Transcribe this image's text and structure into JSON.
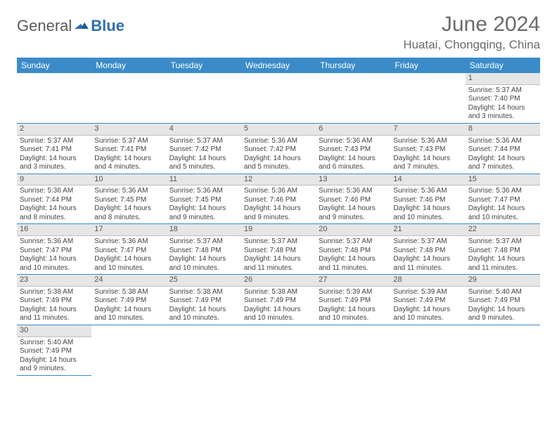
{
  "logo": {
    "text1": "General",
    "text2": "Blue"
  },
  "title": "June 2024",
  "location": "Huatai, Chongqing, China",
  "colors": {
    "header_bg": "#3b8bc9",
    "header_text": "#ffffff",
    "daynum_bg": "#e6e6e6",
    "border": "#3b8bc9",
    "logo_blue": "#2f6fb0",
    "text_gray": "#6a6a6a"
  },
  "day_headers": [
    "Sunday",
    "Monday",
    "Tuesday",
    "Wednesday",
    "Thursday",
    "Friday",
    "Saturday"
  ],
  "weeks": [
    [
      null,
      null,
      null,
      null,
      null,
      null,
      {
        "n": "1",
        "sr": "Sunrise: 5:37 AM",
        "ss": "Sunset: 7:40 PM",
        "dl": "Daylight: 14 hours and 3 minutes."
      }
    ],
    [
      {
        "n": "2",
        "sr": "Sunrise: 5:37 AM",
        "ss": "Sunset: 7:41 PM",
        "dl": "Daylight: 14 hours and 3 minutes."
      },
      {
        "n": "3",
        "sr": "Sunrise: 5:37 AM",
        "ss": "Sunset: 7:41 PM",
        "dl": "Daylight: 14 hours and 4 minutes."
      },
      {
        "n": "4",
        "sr": "Sunrise: 5:37 AM",
        "ss": "Sunset: 7:42 PM",
        "dl": "Daylight: 14 hours and 5 minutes."
      },
      {
        "n": "5",
        "sr": "Sunrise: 5:36 AM",
        "ss": "Sunset: 7:42 PM",
        "dl": "Daylight: 14 hours and 5 minutes."
      },
      {
        "n": "6",
        "sr": "Sunrise: 5:36 AM",
        "ss": "Sunset: 7:43 PM",
        "dl": "Daylight: 14 hours and 6 minutes."
      },
      {
        "n": "7",
        "sr": "Sunrise: 5:36 AM",
        "ss": "Sunset: 7:43 PM",
        "dl": "Daylight: 14 hours and 7 minutes."
      },
      {
        "n": "8",
        "sr": "Sunrise: 5:36 AM",
        "ss": "Sunset: 7:44 PM",
        "dl": "Daylight: 14 hours and 7 minutes."
      }
    ],
    [
      {
        "n": "9",
        "sr": "Sunrise: 5:36 AM",
        "ss": "Sunset: 7:44 PM",
        "dl": "Daylight: 14 hours and 8 minutes."
      },
      {
        "n": "10",
        "sr": "Sunrise: 5:36 AM",
        "ss": "Sunset: 7:45 PM",
        "dl": "Daylight: 14 hours and 8 minutes."
      },
      {
        "n": "11",
        "sr": "Sunrise: 5:36 AM",
        "ss": "Sunset: 7:45 PM",
        "dl": "Daylight: 14 hours and 9 minutes."
      },
      {
        "n": "12",
        "sr": "Sunrise: 5:36 AM",
        "ss": "Sunset: 7:46 PM",
        "dl": "Daylight: 14 hours and 9 minutes."
      },
      {
        "n": "13",
        "sr": "Sunrise: 5:36 AM",
        "ss": "Sunset: 7:46 PM",
        "dl": "Daylight: 14 hours and 9 minutes."
      },
      {
        "n": "14",
        "sr": "Sunrise: 5:36 AM",
        "ss": "Sunset: 7:46 PM",
        "dl": "Daylight: 14 hours and 10 minutes."
      },
      {
        "n": "15",
        "sr": "Sunrise: 5:36 AM",
        "ss": "Sunset: 7:47 PM",
        "dl": "Daylight: 14 hours and 10 minutes."
      }
    ],
    [
      {
        "n": "16",
        "sr": "Sunrise: 5:36 AM",
        "ss": "Sunset: 7:47 PM",
        "dl": "Daylight: 14 hours and 10 minutes."
      },
      {
        "n": "17",
        "sr": "Sunrise: 5:36 AM",
        "ss": "Sunset: 7:47 PM",
        "dl": "Daylight: 14 hours and 10 minutes."
      },
      {
        "n": "18",
        "sr": "Sunrise: 5:37 AM",
        "ss": "Sunset: 7:48 PM",
        "dl": "Daylight: 14 hours and 10 minutes."
      },
      {
        "n": "19",
        "sr": "Sunrise: 5:37 AM",
        "ss": "Sunset: 7:48 PM",
        "dl": "Daylight: 14 hours and 11 minutes."
      },
      {
        "n": "20",
        "sr": "Sunrise: 5:37 AM",
        "ss": "Sunset: 7:48 PM",
        "dl": "Daylight: 14 hours and 11 minutes."
      },
      {
        "n": "21",
        "sr": "Sunrise: 5:37 AM",
        "ss": "Sunset: 7:48 PM",
        "dl": "Daylight: 14 hours and 11 minutes."
      },
      {
        "n": "22",
        "sr": "Sunrise: 5:37 AM",
        "ss": "Sunset: 7:48 PM",
        "dl": "Daylight: 14 hours and 11 minutes."
      }
    ],
    [
      {
        "n": "23",
        "sr": "Sunrise: 5:38 AM",
        "ss": "Sunset: 7:49 PM",
        "dl": "Daylight: 14 hours and 11 minutes."
      },
      {
        "n": "24",
        "sr": "Sunrise: 5:38 AM",
        "ss": "Sunset: 7:49 PM",
        "dl": "Daylight: 14 hours and 10 minutes."
      },
      {
        "n": "25",
        "sr": "Sunrise: 5:38 AM",
        "ss": "Sunset: 7:49 PM",
        "dl": "Daylight: 14 hours and 10 minutes."
      },
      {
        "n": "26",
        "sr": "Sunrise: 5:38 AM",
        "ss": "Sunset: 7:49 PM",
        "dl": "Daylight: 14 hours and 10 minutes."
      },
      {
        "n": "27",
        "sr": "Sunrise: 5:39 AM",
        "ss": "Sunset: 7:49 PM",
        "dl": "Daylight: 14 hours and 10 minutes."
      },
      {
        "n": "28",
        "sr": "Sunrise: 5:39 AM",
        "ss": "Sunset: 7:49 PM",
        "dl": "Daylight: 14 hours and 10 minutes."
      },
      {
        "n": "29",
        "sr": "Sunrise: 5:40 AM",
        "ss": "Sunset: 7:49 PM",
        "dl": "Daylight: 14 hours and 9 minutes."
      }
    ],
    [
      {
        "n": "30",
        "sr": "Sunrise: 5:40 AM",
        "ss": "Sunset: 7:49 PM",
        "dl": "Daylight: 14 hours and 9 minutes."
      },
      null,
      null,
      null,
      null,
      null,
      null
    ]
  ]
}
